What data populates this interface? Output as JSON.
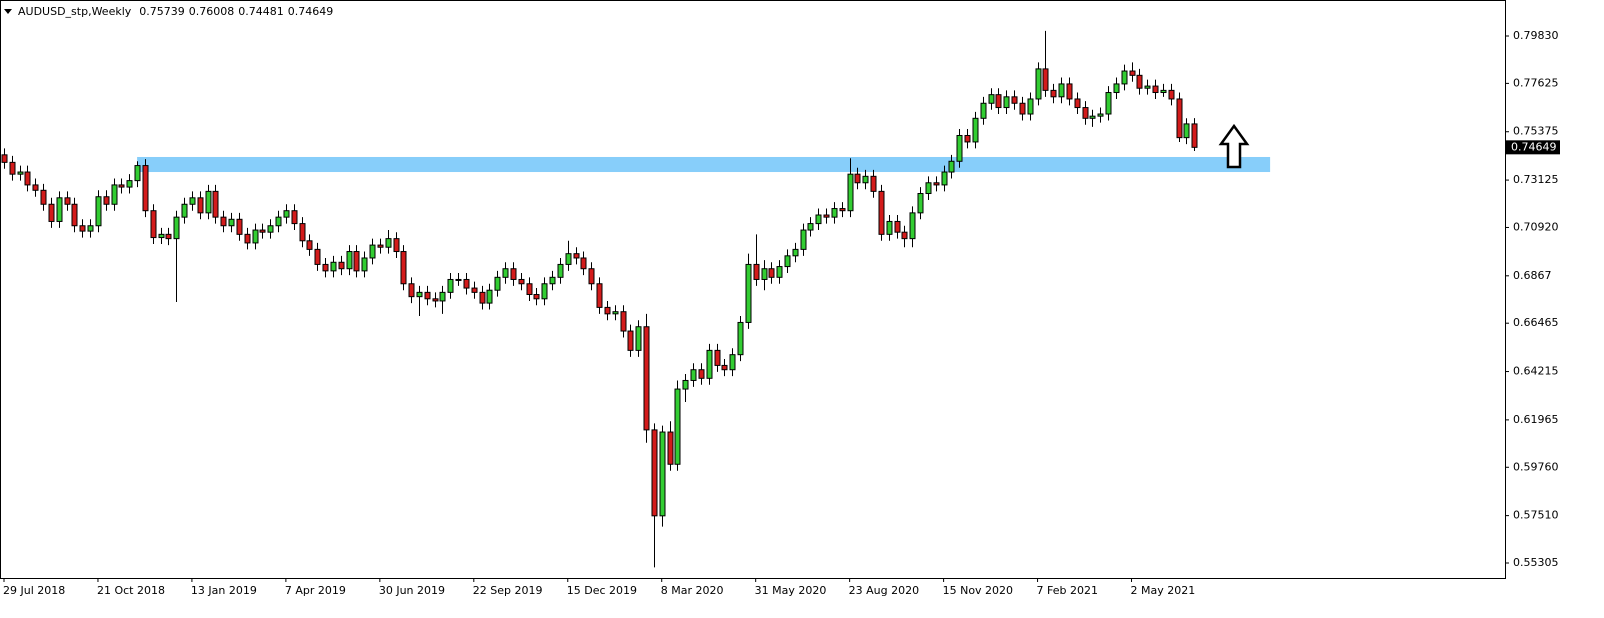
{
  "chart_data": {
    "type": "candlestick",
    "title": "AUDUSD_stp,Weekly",
    "categories": [
      "29 Jul 2018",
      null,
      null,
      null,
      null,
      null,
      null,
      null,
      null,
      null,
      null,
      null,
      "21 Oct 2018",
      null,
      null,
      null,
      null,
      null,
      null,
      null,
      null,
      null,
      null,
      null,
      "13 Jan 2019",
      null,
      null,
      null,
      null,
      null,
      null,
      null,
      null,
      null,
      null,
      null,
      "7 Apr 2019",
      null,
      null,
      null,
      null,
      null,
      null,
      null,
      null,
      null,
      null,
      null,
      "30 Jun 2019",
      null,
      null,
      null,
      null,
      null,
      null,
      null,
      null,
      null,
      null,
      null,
      "22 Sep 2019",
      null,
      null,
      null,
      null,
      null,
      null,
      null,
      null,
      null,
      null,
      null,
      "15 Dec 2019",
      null,
      null,
      null,
      null,
      null,
      null,
      null,
      null,
      null,
      null,
      null,
      "8 Mar 2020",
      null,
      null,
      null,
      null,
      null,
      null,
      null,
      null,
      null,
      null,
      null,
      "31 May 2020",
      null,
      null,
      null,
      null,
      null,
      null,
      null,
      null,
      null,
      null,
      null,
      "23 Aug 2020",
      null,
      null,
      null,
      null,
      null,
      null,
      null,
      null,
      null,
      null,
      null,
      "15 Nov 2020",
      null,
      null,
      null,
      null,
      null,
      null,
      null,
      null,
      null,
      null,
      null,
      "7 Feb 2021",
      null,
      null,
      null,
      null,
      null,
      null,
      null,
      null,
      null,
      null,
      null,
      "2 May 2021",
      null,
      null,
      null,
      null,
      null,
      null,
      null,
      null
    ],
    "open": [
      0.743,
      0.7395,
      0.734,
      0.735,
      0.729,
      0.7265,
      0.72,
      0.712,
      0.723,
      0.72,
      0.71,
      0.7075,
      0.71,
      0.7235,
      0.72,
      0.729,
      0.728,
      0.731,
      0.738,
      0.717,
      0.7045,
      0.706,
      0.704,
      0.714,
      0.72,
      0.723,
      0.716,
      0.726,
      0.714,
      0.71,
      0.713,
      0.706,
      0.702,
      0.708,
      0.707,
      0.71,
      0.714,
      0.717,
      0.711,
      0.703,
      0.699,
      0.692,
      0.689,
      0.693,
      0.69,
      0.698,
      0.689,
      0.695,
      0.701,
      0.7,
      0.704,
      0.698,
      0.683,
      0.677,
      0.679,
      0.676,
      0.675,
      0.679,
      0.685,
      0.685,
      0.681,
      0.679,
      0.674,
      0.68,
      0.686,
      0.69,
      0.685,
      0.683,
      0.678,
      0.676,
      0.683,
      0.686,
      0.692,
      0.697,
      0.695,
      0.69,
      0.683,
      0.672,
      0.669,
      0.67,
      0.661,
      0.652,
      0.663,
      0.615,
      0.575,
      0.614,
      0.599,
      0.634,
      0.638,
      0.643,
      0.639,
      0.652,
      0.645,
      0.643,
      0.65,
      0.665,
      0.692,
      0.685,
      0.69,
      0.686,
      0.691,
      0.696,
      0.699,
      0.708,
      0.711,
      0.715,
      0.714,
      0.718,
      0.717,
      0.734,
      0.73,
      0.733,
      0.726,
      0.706,
      0.712,
      0.707,
      0.704,
      0.716,
      0.725,
      0.73,
      0.729,
      0.735,
      0.74,
      0.752,
      0.749,
      0.76,
      0.767,
      0.771,
      0.765,
      0.77,
      0.767,
      0.762,
      0.769,
      0.783,
      0.773,
      0.77,
      0.776,
      0.769,
      0.765,
      0.76,
      0.761,
      0.762,
      0.772,
      0.776,
      0.782,
      0.78,
      0.774,
      0.775,
      0.772,
      0.773,
      0.769,
      0.751,
      0.75739
    ],
    "high": [
      0.746,
      0.7425,
      0.738,
      0.738,
      0.732,
      0.7295,
      0.723,
      0.726,
      0.726,
      0.723,
      0.713,
      0.713,
      0.7265,
      0.7265,
      0.732,
      0.732,
      0.734,
      0.74,
      0.741,
      0.72,
      0.709,
      0.709,
      0.717,
      0.723,
      0.726,
      0.726,
      0.729,
      0.729,
      0.717,
      0.716,
      0.716,
      0.709,
      0.711,
      0.711,
      0.713,
      0.717,
      0.72,
      0.72,
      0.714,
      0.706,
      0.702,
      0.695,
      0.696,
      0.696,
      0.701,
      0.701,
      0.698,
      0.704,
      0.704,
      0.708,
      0.707,
      0.701,
      0.686,
      0.682,
      0.682,
      0.679,
      0.682,
      0.688,
      0.688,
      0.688,
      0.684,
      0.682,
      0.683,
      0.689,
      0.693,
      0.693,
      0.688,
      0.686,
      0.681,
      0.686,
      0.689,
      0.695,
      0.703,
      0.7,
      0.698,
      0.693,
      0.686,
      0.675,
      0.673,
      0.673,
      0.664,
      0.666,
      0.669,
      0.618,
      0.617,
      0.619,
      0.638,
      0.641,
      0.646,
      0.646,
      0.655,
      0.655,
      0.648,
      0.653,
      0.668,
      0.697,
      0.706,
      0.694,
      0.693,
      0.694,
      0.699,
      0.702,
      0.711,
      0.714,
      0.718,
      0.718,
      0.721,
      0.721,
      0.7414,
      0.737,
      0.736,
      0.736,
      0.729,
      0.715,
      0.715,
      0.71,
      0.719,
      0.728,
      0.733,
      0.733,
      0.738,
      0.743,
      0.755,
      0.755,
      0.763,
      0.77,
      0.774,
      0.774,
      0.773,
      0.773,
      0.77,
      0.772,
      0.786,
      0.8007,
      0.776,
      0.779,
      0.779,
      0.772,
      0.768,
      0.764,
      0.765,
      0.775,
      0.779,
      0.785,
      0.786,
      0.783,
      0.778,
      0.778,
      0.776,
      0.776,
      0.772,
      0.76,
      0.76008
    ],
    "low": [
      0.7365,
      0.731,
      0.731,
      0.726,
      0.7235,
      0.717,
      0.709,
      0.709,
      0.717,
      0.707,
      0.7045,
      0.7045,
      0.707,
      0.717,
      0.717,
      0.725,
      0.725,
      0.728,
      0.714,
      0.7015,
      0.7015,
      0.701,
      0.6745,
      0.711,
      0.717,
      0.713,
      0.713,
      0.711,
      0.707,
      0.707,
      0.703,
      0.699,
      0.699,
      0.704,
      0.704,
      0.707,
      0.711,
      0.708,
      0.7,
      0.696,
      0.689,
      0.686,
      0.686,
      0.687,
      0.687,
      0.686,
      0.686,
      0.692,
      0.697,
      0.697,
      0.695,
      0.68,
      0.674,
      0.668,
      0.673,
      0.672,
      0.669,
      0.676,
      0.682,
      0.678,
      0.676,
      0.671,
      0.671,
      0.677,
      0.683,
      0.682,
      0.68,
      0.675,
      0.673,
      0.673,
      0.68,
      0.683,
      0.689,
      0.692,
      0.687,
      0.68,
      0.669,
      0.666,
      0.666,
      0.658,
      0.649,
      0.649,
      0.609,
      0.551,
      0.57,
      0.596,
      0.596,
      0.628,
      0.635,
      0.636,
      0.636,
      0.642,
      0.64,
      0.64,
      0.647,
      0.662,
      0.682,
      0.68,
      0.683,
      0.683,
      0.688,
      0.693,
      0.696,
      0.705,
      0.708,
      0.711,
      0.711,
      0.714,
      0.714,
      0.727,
      0.727,
      0.723,
      0.703,
      0.703,
      0.704,
      0.7,
      0.7,
      0.713,
      0.722,
      0.726,
      0.726,
      0.732,
      0.737,
      0.746,
      0.746,
      0.757,
      0.764,
      0.762,
      0.762,
      0.764,
      0.759,
      0.759,
      0.766,
      0.77,
      0.767,
      0.767,
      0.766,
      0.762,
      0.757,
      0.756,
      0.758,
      0.759,
      0.769,
      0.773,
      0.777,
      0.771,
      0.771,
      0.769,
      0.77,
      0.766,
      0.749,
      0.748,
      0.74481
    ],
    "close": [
      0.7395,
      0.734,
      0.735,
      0.729,
      0.7265,
      0.72,
      0.712,
      0.723,
      0.72,
      0.71,
      0.7075,
      0.71,
      0.7235,
      0.72,
      0.729,
      0.728,
      0.731,
      0.738,
      0.717,
      0.7045,
      0.706,
      0.704,
      0.714,
      0.72,
      0.723,
      0.716,
      0.726,
      0.714,
      0.71,
      0.713,
      0.706,
      0.702,
      0.708,
      0.707,
      0.71,
      0.714,
      0.717,
      0.711,
      0.703,
      0.699,
      0.692,
      0.689,
      0.693,
      0.69,
      0.698,
      0.689,
      0.695,
      0.701,
      0.7,
      0.704,
      0.698,
      0.683,
      0.677,
      0.679,
      0.676,
      0.675,
      0.679,
      0.685,
      0.685,
      0.681,
      0.679,
      0.674,
      0.68,
      0.686,
      0.69,
      0.685,
      0.683,
      0.678,
      0.676,
      0.683,
      0.686,
      0.692,
      0.697,
      0.695,
      0.69,
      0.683,
      0.672,
      0.669,
      0.67,
      0.661,
      0.652,
      0.663,
      0.615,
      0.575,
      0.614,
      0.599,
      0.634,
      0.638,
      0.643,
      0.639,
      0.652,
      0.645,
      0.643,
      0.65,
      0.665,
      0.692,
      0.685,
      0.69,
      0.686,
      0.691,
      0.696,
      0.699,
      0.708,
      0.711,
      0.715,
      0.714,
      0.718,
      0.717,
      0.734,
      0.73,
      0.733,
      0.726,
      0.706,
      0.712,
      0.707,
      0.704,
      0.716,
      0.725,
      0.73,
      0.729,
      0.735,
      0.74,
      0.752,
      0.749,
      0.76,
      0.767,
      0.771,
      0.765,
      0.77,
      0.767,
      0.762,
      0.769,
      0.783,
      0.773,
      0.77,
      0.776,
      0.769,
      0.765,
      0.76,
      0.761,
      0.762,
      0.772,
      0.776,
      0.782,
      0.78,
      0.774,
      0.775,
      0.772,
      0.773,
      0.769,
      0.751,
      0.7574,
      0.74649
    ],
    "colors": {
      "up": "#32cd32",
      "down": "#d31b1b",
      "outline": "#000000"
    },
    "zone": {
      "low": 0.735,
      "high": 0.742,
      "x_start": 17,
      "x_end": 161.7,
      "color": "#87cefa"
    },
    "ylim": [
      0.54607,
      0.81459
    ],
    "yticks": [
      {
        "value": 0.7983,
        "label": "0.79830"
      },
      0.77625,
      0.75375,
      0.73125,
      {
        "value": 0.7092,
        "label": "0.70920"
      },
      0.6867,
      0.66465,
      0.64215,
      0.61965,
      {
        "value": 0.5976,
        "label": "0.59760"
      },
      {
        "value": 0.5751,
        "label": "0.57510"
      },
      0.55305
    ]
  }
}
